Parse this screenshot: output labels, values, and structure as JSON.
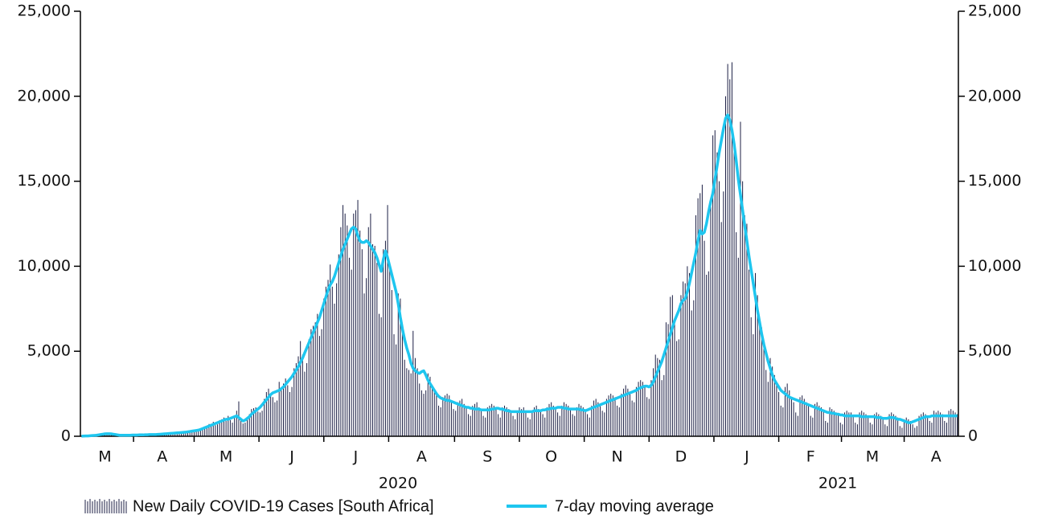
{
  "chart_data": {
    "type": "bar",
    "categories": [
      null,
      null,
      null,
      null,
      null,
      null,
      null,
      null,
      null,
      null,
      null,
      "M",
      null,
      null,
      null,
      null,
      null,
      null,
      null,
      null,
      null,
      null,
      null,
      null,
      null,
      null,
      null,
      null,
      null,
      null,
      null,
      null,
      null,
      null,
      null,
      null,
      null,
      null,
      "A",
      null,
      null,
      null,
      null,
      null,
      null,
      null,
      null,
      null,
      null,
      null,
      null,
      null,
      null,
      null,
      null,
      null,
      null,
      null,
      null,
      null,
      null,
      null,
      null,
      null,
      null,
      null,
      null,
      null,
      "M",
      null,
      null,
      null,
      null,
      null,
      null,
      null,
      null,
      null,
      null,
      null,
      null,
      null,
      null,
      null,
      null,
      null,
      null,
      null,
      null,
      null,
      null,
      null,
      null,
      null,
      null,
      null,
      null,
      null,
      null,
      "J",
      null,
      null,
      null,
      null,
      null,
      null,
      null,
      null,
      null,
      null,
      null,
      null,
      null,
      null,
      null,
      null,
      null,
      null,
      null,
      null,
      null,
      null,
      null,
      null,
      null,
      null,
      null,
      null,
      null,
      "J",
      null,
      null,
      null,
      null,
      null,
      null,
      null,
      null,
      null,
      null,
      null,
      null,
      null,
      null,
      null,
      null,
      null,
      null,
      null,
      null,
      null,
      null,
      null,
      null,
      null,
      null,
      null,
      null,
      null,
      null,
      "A",
      null,
      null,
      null,
      null,
      null,
      null,
      null,
      null,
      null,
      null,
      null,
      null,
      null,
      null,
      null,
      null,
      null,
      null,
      null,
      null,
      null,
      null,
      null,
      null,
      null,
      null,
      null,
      null,
      null,
      null,
      "S",
      null,
      null,
      null,
      null,
      null,
      null,
      null,
      null,
      null,
      null,
      null,
      null,
      null,
      null,
      null,
      null,
      null,
      null,
      null,
      null,
      null,
      null,
      null,
      null,
      null,
      null,
      null,
      null,
      null,
      "O",
      null,
      null,
      null,
      null,
      null,
      null,
      null,
      null,
      null,
      null,
      null,
      null,
      null,
      null,
      null,
      null,
      null,
      null,
      null,
      null,
      null,
      null,
      null,
      null,
      null,
      null,
      null,
      null,
      null,
      null,
      "N",
      null,
      null,
      null,
      null,
      null,
      null,
      null,
      null,
      null,
      null,
      null,
      null,
      null,
      null,
      null,
      null,
      null,
      null,
      null,
      null,
      null,
      null,
      null,
      null,
      null,
      null,
      null,
      null,
      null,
      "D",
      null,
      null,
      null,
      null,
      null,
      null,
      null,
      null,
      null,
      null,
      null,
      null,
      null,
      null,
      null,
      null,
      null,
      null,
      null,
      null,
      null,
      null,
      null,
      null,
      null,
      null,
      null,
      null,
      null,
      null,
      "J",
      null,
      null,
      null,
      null,
      null,
      null,
      null,
      null,
      null,
      null,
      null,
      null,
      null,
      null,
      null,
      null,
      null,
      null,
      null,
      null,
      null,
      null,
      null,
      null,
      null,
      null,
      null,
      null,
      null,
      "F",
      null,
      null,
      null,
      null,
      null,
      null,
      null,
      null,
      null,
      null,
      null,
      null,
      null,
      null,
      null,
      null,
      null,
      null,
      null,
      null,
      null,
      null,
      null,
      null,
      null,
      null,
      null,
      null,
      "M",
      null,
      null,
      null,
      null,
      null,
      null,
      null,
      null,
      null,
      null,
      null,
      null,
      null,
      null,
      null,
      null,
      null,
      null,
      null,
      null,
      null,
      null,
      null,
      null,
      null,
      null,
      null,
      null,
      null,
      "A",
      null,
      null,
      null,
      null,
      null,
      null,
      null,
      null,
      null,
      null
    ],
    "year_labels": [
      "2020",
      "2021"
    ],
    "series": [
      {
        "name": "New Daily COVID-19 Cases [South Africa]",
        "color": "#1c1f45",
        "values": [
          3,
          7,
          13,
          24,
          38,
          61,
          17,
          63,
          86,
          116,
          99,
          150,
          202,
          120,
          136,
          148,
          60,
          71,
          55,
          84,
          45,
          40,
          80,
          60,
          70,
          96,
          55,
          90,
          90,
          60,
          85,
          110,
          105,
          95,
          120,
          90,
          85,
          140,
          150,
          180,
          120,
          160,
          150,
          140,
          210,
          250,
          220,
          180,
          270,
          220,
          200,
          310,
          350,
          300,
          370,
          420,
          350,
          400,
          540,
          600,
          720,
          700,
          850,
          650,
          700,
          950,
          1000,
          1100,
          900,
          1200,
          950,
          800,
          1100,
          1500,
          2050,
          1000,
          750,
          800,
          1050,
          1300,
          1600,
          1650,
          1700,
          1450,
          1400,
          1500,
          2200,
          2600,
          2800,
          2500,
          2300,
          2000,
          2100,
          3200,
          2700,
          3100,
          3400,
          3000,
          2600,
          2900,
          4000,
          4300,
          4700,
          5600,
          4800,
          3800,
          4300,
          5700,
          6300,
          6500,
          6700,
          7200,
          5900,
          6300,
          8100,
          8800,
          9200,
          10100,
          8800,
          7800,
          9000,
          10700,
          12300,
          13600,
          13100,
          12400,
          10500,
          9800,
          13100,
          13300,
          13900,
          12100,
          11000,
          8400,
          9300,
          12300,
          13100,
          11300,
          11200,
          10200,
          7200,
          7000,
          11000,
          11500,
          13600,
          10100,
          8600,
          6000,
          5400,
          8400,
          8100,
          6100,
          4500,
          4000,
          3900,
          3700,
          6200,
          4600,
          4000,
          3100,
          2700,
          2500,
          2700,
          3700,
          3500,
          3000,
          2600,
          2500,
          1800,
          1700,
          2300,
          2400,
          2500,
          2400,
          2000,
          1600,
          1500,
          2000,
          2100,
          2200,
          1900,
          1700,
          1300,
          1200,
          1800,
          1900,
          2000,
          1700,
          1500,
          1200,
          1100,
          1700,
          1800,
          1900,
          1800,
          1600,
          1300,
          1100,
          1700,
          1800,
          1700,
          1600,
          1400,
          1200,
          1000,
          1500,
          1700,
          1600,
          1700,
          1500,
          1100,
          1000,
          1500,
          1700,
          1800,
          1600,
          1500,
          1300,
          1100,
          1700,
          1900,
          2000,
          1800,
          1700,
          1400,
          1200,
          1800,
          2000,
          1900,
          1800,
          1600,
          1300,
          1200,
          1700,
          1900,
          1800,
          1700,
          1500,
          1300,
          1100,
          1800,
          2100,
          2200,
          2000,
          1900,
          1500,
          1400,
          2200,
          2400,
          2500,
          2400,
          2300,
          1800,
          1700,
          2500,
          2800,
          3000,
          2800,
          2600,
          2100,
          2000,
          2900,
          3200,
          3300,
          3200,
          3000,
          2300,
          2200,
          3300,
          4000,
          4800,
          4600,
          4500,
          3300,
          3600,
          6700,
          6600,
          8200,
          8300,
          6700,
          5600,
          5700,
          8300,
          9100,
          9000,
          10000,
          9600,
          7400,
          8000,
          13000,
          14000,
          14300,
          14800,
          11500,
          9500,
          9700,
          14000,
          17700,
          18000,
          16700,
          15000,
          12600,
          14400,
          20000,
          21900,
          21000,
          22000,
          17400,
          12000,
          10500,
          18500,
          15000,
          13000,
          12500,
          9800,
          7000,
          6000,
          9600,
          8300,
          7000,
          6400,
          5200,
          3900,
          3200,
          4600,
          4100,
          3600,
          3200,
          2600,
          1800,
          1700,
          2900,
          3100,
          2700,
          2300,
          2000,
          1400,
          1200,
          2300,
          2400,
          2200,
          2000,
          1800,
          1200,
          1100,
          1900,
          2000,
          1800,
          1700,
          1500,
          900,
          800,
          1700,
          1600,
          1500,
          1400,
          1300,
          800,
          700,
          1400,
          1500,
          1400,
          1400,
          1200,
          800,
          700,
          1400,
          1500,
          1400,
          1300,
          1200,
          800,
          700,
          1300,
          1400,
          1300,
          1200,
          1100,
          700,
          600,
          1300,
          1400,
          1300,
          1200,
          1100,
          600,
          500,
          1000,
          1100,
          1000,
          900,
          700,
          500,
          600,
          1200,
          1300,
          1400,
          1300,
          1200,
          900,
          800,
          1500,
          1400,
          1500,
          1400,
          1300,
          900,
          800,
          1500,
          1600,
          1500,
          1400,
          1300
        ]
      },
      {
        "name": "7-day moving average",
        "type": "line",
        "color": "#1ec6ef",
        "values": [
          5,
          10,
          15,
          20,
          30,
          40,
          50,
          60,
          80,
          100,
          120,
          140,
          150,
          150,
          140,
          120,
          100,
          80,
          60,
          60,
          60,
          60,
          60,
          60,
          70,
          70,
          70,
          80,
          80,
          80,
          90,
          90,
          100,
          100,
          100,
          100,
          110,
          120,
          130,
          140,
          150,
          160,
          170,
          180,
          190,
          200,
          210,
          220,
          230,
          240,
          260,
          280,
          300,
          320,
          340,
          360,
          400,
          450,
          500,
          550,
          600,
          650,
          700,
          750,
          800,
          850,
          900,
          950,
          1000,
          1000,
          1050,
          1100,
          1150,
          1200,
          1100,
          1000,
          900,
          950,
          1050,
          1150,
          1300,
          1400,
          1500,
          1600,
          1700,
          1850,
          2000,
          2150,
          2300,
          2450,
          2550,
          2600,
          2650,
          2700,
          2800,
          2900,
          3050,
          3200,
          3350,
          3500,
          3700,
          3900,
          4100,
          4350,
          4600,
          4900,
          5200,
          5500,
          5800,
          6100,
          6400,
          6700,
          7000,
          7400,
          7800,
          8200,
          8600,
          8900,
          9100,
          9400,
          9800,
          10200,
          10600,
          11000,
          11300,
          11600,
          11900,
          12200,
          12300,
          12200,
          11800,
          11500,
          11400,
          11400,
          11500,
          11400,
          11200,
          11000,
          10800,
          10500,
          10100,
          9700,
          10400,
          10900,
          10500,
          10000,
          9500,
          9000,
          8500,
          7800,
          7000,
          6300,
          5700,
          5200,
          4800,
          4300,
          4000,
          3850,
          3750,
          3700,
          3800,
          3850,
          3600,
          3300,
          3100,
          2900,
          2700,
          2500,
          2350,
          2250,
          2200,
          2150,
          2100,
          2100,
          2050,
          2000,
          1950,
          1900,
          1850,
          1800,
          1750,
          1700,
          1700,
          1650,
          1650,
          1600,
          1600,
          1600,
          1550,
          1550,
          1550,
          1550,
          1550,
          1600,
          1600,
          1650,
          1650,
          1600,
          1600,
          1550,
          1500,
          1500,
          1450,
          1450,
          1450,
          1450,
          1450,
          1450,
          1450,
          1450,
          1450,
          1450,
          1450,
          1500,
          1500,
          1500,
          1500,
          1550,
          1550,
          1600,
          1600,
          1650,
          1650,
          1650,
          1700,
          1700,
          1700,
          1650,
          1650,
          1600,
          1600,
          1600,
          1600,
          1600,
          1600,
          1550,
          1550,
          1500,
          1550,
          1600,
          1650,
          1700,
          1750,
          1800,
          1850,
          1900,
          1950,
          2000,
          2050,
          2100,
          2150,
          2200,
          2250,
          2300,
          2350,
          2400,
          2450,
          2500,
          2550,
          2600,
          2650,
          2700,
          2800,
          2850,
          2900,
          2950,
          2950,
          2900,
          3000,
          3200,
          3500,
          3800,
          4100,
          4400,
          4800,
          5200,
          5600,
          6000,
          6400,
          6800,
          7100,
          7400,
          7800,
          8000,
          8100,
          8500,
          9000,
          9600,
          10200,
          10800,
          11500,
          12100,
          11900,
          12000,
          12500,
          13200,
          13800,
          14300,
          15100,
          15900,
          16700,
          17400,
          18100,
          18700,
          18900,
          18600,
          18000,
          17200,
          16200,
          15100,
          14200,
          13300,
          12400,
          11500,
          10600,
          9800,
          9000,
          8200,
          7400,
          6700,
          6000,
          5400,
          4900,
          4400,
          4000,
          3600,
          3300,
          3100,
          2900,
          2700,
          2600,
          2500,
          2400,
          2300,
          2250,
          2200,
          2150,
          2100,
          2050,
          2000,
          1950,
          1900,
          1850,
          1800,
          1750,
          1700,
          1650,
          1600,
          1550,
          1500,
          1450,
          1400,
          1400,
          1350,
          1350,
          1300,
          1300,
          1250,
          1250,
          1200,
          1200,
          1200,
          1200,
          1200,
          1200,
          1200,
          1200,
          1150,
          1150,
          1150,
          1150,
          1150,
          1150,
          1150,
          1100,
          1100,
          1100,
          1050,
          1050,
          1050,
          1100,
          1100,
          1100,
          1050,
          1000,
          1000,
          950,
          900,
          850,
          800,
          800,
          850,
          900,
          950,
          1000,
          1050,
          1100,
          1150,
          1150,
          1150,
          1200,
          1200,
          1200,
          1200,
          1200,
          1200,
          1200,
          1200,
          1200,
          1200,
          1200,
          1200,
          1200
        ]
      }
    ],
    "ylim": [
      0,
      25000
    ],
    "yticks": [
      0,
      {
        "value": 5000,
        "label": "5,000"
      },
      {
        "value": 10000,
        "label": "10,000"
      },
      {
        "value": 15000,
        "label": "15,000"
      },
      {
        "value": 20000,
        "label": "20,000"
      },
      {
        "value": 25000,
        "label": "25,000"
      }
    ],
    "y2lim": [
      0,
      25000
    ],
    "y2ticks": [
      0,
      {
        "value": 5000,
        "label": "5,000"
      },
      {
        "value": 10000,
        "label": "10,000"
      },
      {
        "value": 15000,
        "label": "15,000"
      },
      {
        "value": 20000,
        "label": "20,000"
      },
      {
        "value": 25000,
        "label": "25,000"
      }
    ],
    "grid": false,
    "legend": "bottom"
  }
}
